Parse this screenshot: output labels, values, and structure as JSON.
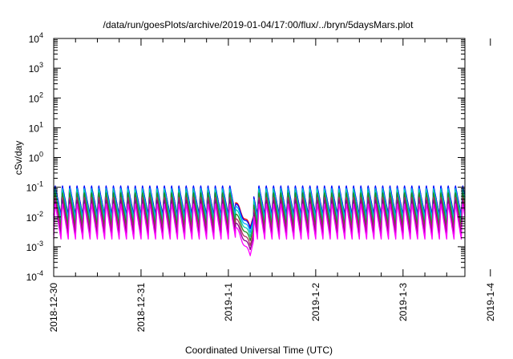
{
  "chart_data": {
    "type": "line",
    "title": "/data/run/goesPlots/archive/2019-01-04/17:00/flux/../bryn/5daysMars.plot",
    "xlabel": "Coordinated Universal Time (UTC)",
    "ylabel": "cSv/day",
    "yscale": "log",
    "ylim": [
      0.0001,
      10000
    ],
    "y_ticks": [
      {
        "base": "10",
        "exp": "-4",
        "value": 0.0001
      },
      {
        "base": "10",
        "exp": "-3",
        "value": 0.001
      },
      {
        "base": "10",
        "exp": "-2",
        "value": 0.01
      },
      {
        "base": "10",
        "exp": "-1",
        "value": 0.1
      },
      {
        "base": "10",
        "exp": "0",
        "value": 1
      },
      {
        "base": "10",
        "exp": "1",
        "value": 10
      },
      {
        "base": "10",
        "exp": "2",
        "value": 100
      },
      {
        "base": "10",
        "exp": "3",
        "value": 1000
      },
      {
        "base": "10",
        "exp": "4",
        "value": 10000
      }
    ],
    "x_ticks": [
      "2018-12-30",
      "2018-12-31",
      "2019-1-1",
      "2019-1-2",
      "2019-1-3",
      "2019-1-4"
    ],
    "xlim": [
      "2018-12-30",
      "2019-01-04 17:00"
    ],
    "grid": false,
    "pattern": {
      "cycle_hours": 2,
      "dip_start": "2019-01-01 02:00",
      "dip_end": "2019-01-01 07:00",
      "dip_minimum": "2019-01-01 06:00"
    },
    "series": [
      {
        "color": "#ff0000",
        "peak": 0.11,
        "trough": 0.012,
        "dip_min": 0.0045
      },
      {
        "color": "#0000ff",
        "peak": 0.12,
        "trough": 0.011,
        "dip_min": 0.004
      },
      {
        "color": "#00aaff",
        "peak": 0.1,
        "trough": 0.009,
        "dip_min": 0.003
      },
      {
        "color": "#00ccaa",
        "peak": 0.09,
        "trough": 0.007,
        "dip_min": 0.0022
      },
      {
        "color": "#228b22",
        "peak": 0.07,
        "trough": 0.005,
        "dip_min": 0.0016
      },
      {
        "color": "#b03060",
        "peak": 0.05,
        "trough": 0.0035,
        "dip_min": 0.0011
      },
      {
        "color": "#8b008b",
        "peak": 0.04,
        "trough": 0.0025,
        "dip_min": 0.0008
      },
      {
        "color": "#ff00ff",
        "peak": 0.03,
        "trough": 0.0018,
        "dip_min": 0.0005
      }
    ]
  }
}
